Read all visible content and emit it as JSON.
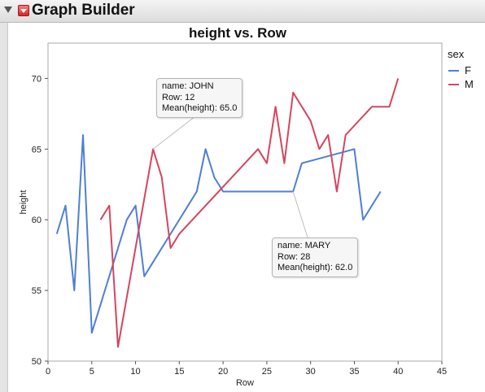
{
  "app": {
    "title": "Graph Builder"
  },
  "chart_data": {
    "type": "line",
    "title": "height vs. Row",
    "xlabel": "Row",
    "ylabel": "height",
    "xlim": [
      0,
      45
    ],
    "ylim": [
      50,
      72.5
    ],
    "xticks": [
      0,
      5,
      10,
      15,
      20,
      25,
      30,
      35,
      40,
      45
    ],
    "yticks": [
      50,
      55,
      60,
      65,
      70
    ],
    "grid": false,
    "legend": {
      "title": "sex",
      "placement": "right"
    },
    "series": [
      {
        "name": "F",
        "color": "#4e7fd6",
        "points": [
          [
            1,
            59
          ],
          [
            2,
            61
          ],
          [
            3,
            55
          ],
          [
            4,
            66
          ],
          [
            5,
            52
          ],
          [
            9,
            60
          ],
          [
            10,
            61
          ],
          [
            11,
            56
          ],
          [
            17,
            62
          ],
          [
            18,
            65
          ],
          [
            19,
            63
          ],
          [
            20,
            62
          ],
          [
            28,
            62
          ],
          [
            29,
            64
          ],
          [
            35,
            65
          ],
          [
            36,
            60
          ],
          [
            38,
            62
          ]
        ]
      },
      {
        "name": "M",
        "color": "#d6455e",
        "points": [
          [
            6,
            60
          ],
          [
            7,
            61
          ],
          [
            8,
            51
          ],
          [
            12,
            65
          ],
          [
            13,
            63
          ],
          [
            14,
            58
          ],
          [
            15,
            59
          ],
          [
            21,
            63
          ],
          [
            24,
            65
          ],
          [
            25,
            64
          ],
          [
            26,
            68
          ],
          [
            27,
            64
          ],
          [
            28,
            69
          ],
          [
            30,
            67
          ],
          [
            31,
            65
          ],
          [
            32,
            66
          ],
          [
            33,
            62
          ],
          [
            34,
            66
          ],
          [
            37,
            68
          ],
          [
            39,
            68
          ],
          [
            40,
            70
          ]
        ]
      }
    ],
    "annotations": [
      {
        "lines": [
          "name: JOHN",
          "Row: 12",
          "Mean(height): 65.0"
        ],
        "anchor": [
          12,
          65
        ]
      },
      {
        "lines": [
          "name: MARY",
          "Row: 28",
          "Mean(height): 62.0"
        ],
        "anchor": [
          28,
          62
        ]
      }
    ]
  }
}
